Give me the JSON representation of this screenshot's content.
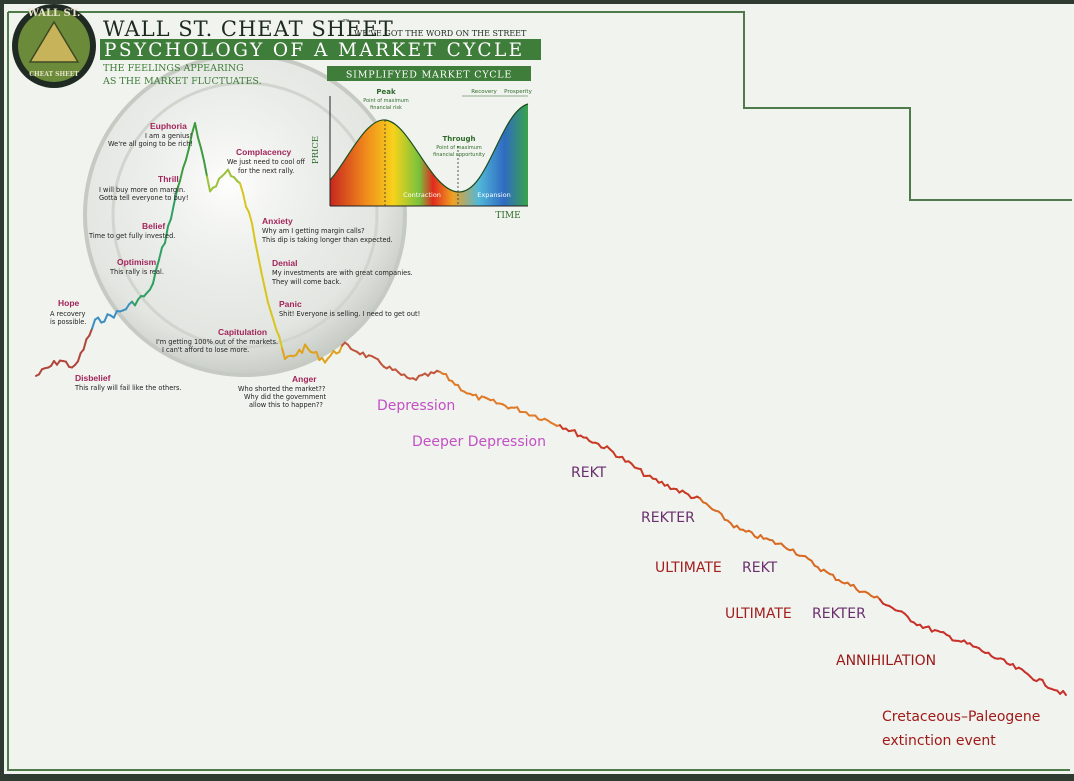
{
  "header": {
    "title": "WALL ST. CHEAT SHEET",
    "trademark": "™",
    "tagline": "WE'VE GOT THE WORD ON THE STREET",
    "banner": "PSYCHOLOGY OF A MARKET CYCLE",
    "subtitle_line1": "THE FEELINGS APPEARING",
    "subtitle_line2": "AS THE MARKET FLUCTUATES.",
    "logo_top": "WALL ST.",
    "logo_bottom": "CHEAT SHEET"
  },
  "inset": {
    "title": "SIMPLIFYED MARKET CYCLE",
    "peak": "Peak",
    "peak_note1": "Point of maximum",
    "peak_note2": "financial risk",
    "trough": "Through",
    "trough_note1": "Point of maximum",
    "trough_note2": "financial opportunity",
    "recovery": "Recovery",
    "prosperity": "Prosperity",
    "contraction": "Contraction",
    "expansion": "Expansion",
    "xlabel": "TIME",
    "ylabel": "PRICE"
  },
  "colors": {
    "background": "#f1f3ee",
    "frame": "#4f7a4a",
    "banner": "#3f7d3a",
    "stage_label": "#a3245a",
    "depression": "#c24fc5",
    "rekt": "#6a2f6e",
    "ultimate": "#a31e1e",
    "annihilation": "#9b1818",
    "extinction": "#a01a1a"
  },
  "chart_data": {
    "type": "line",
    "title": "PSYCHOLOGY OF A MARKET CYCLE",
    "xlabel": "",
    "ylabel": "",
    "stages": [
      {
        "name": "Disbelief",
        "text": [
          "This rally will fail like the others."
        ]
      },
      {
        "name": "Hope",
        "text": [
          "A recovery",
          "is possible."
        ]
      },
      {
        "name": "Optimism",
        "text": [
          "This rally is real."
        ]
      },
      {
        "name": "Belief",
        "text": [
          "Time to get fully invested."
        ]
      },
      {
        "name": "Thrill",
        "text": [
          "I will buy more on margin.",
          "Gotta tell everyone to buy!"
        ]
      },
      {
        "name": "Euphoria",
        "text": [
          "I am a genius!",
          "We're all going to be rich!"
        ]
      },
      {
        "name": "Complacency",
        "text": [
          "We just need to cool off",
          "for the next rally."
        ]
      },
      {
        "name": "Anxiety",
        "text": [
          "Why am I getting margin calls?",
          "This dip is taking longer than expected."
        ]
      },
      {
        "name": "Denial",
        "text": [
          "My investments are with great companies.",
          "They will come back."
        ]
      },
      {
        "name": "Panic",
        "text": [
          "Shit! Everyone is selling. I need to get out!"
        ]
      },
      {
        "name": "Capitulation",
        "text": [
          "I'm getting 100% out of the markets.",
          "I can't afford to lose more."
        ]
      },
      {
        "name": "Anger",
        "text": [
          "Who shorted the market??",
          "Why did the government",
          "allow this to happen??"
        ]
      }
    ],
    "extension_labels": [
      {
        "main": "Depression",
        "suffix": ""
      },
      {
        "main": "Deeper Depression",
        "suffix": ""
      },
      {
        "main": "REKT",
        "suffix": ""
      },
      {
        "main": "REKTER",
        "suffix": ""
      },
      {
        "main": "ULTIMATE",
        "suffix": "REKT"
      },
      {
        "main": "ULTIMATE",
        "suffix": "REKTER"
      },
      {
        "main": "ANNIHILATION",
        "suffix": ""
      },
      {
        "main": "Cretaceous–Paleogene",
        "suffix": "extinction event"
      }
    ]
  }
}
